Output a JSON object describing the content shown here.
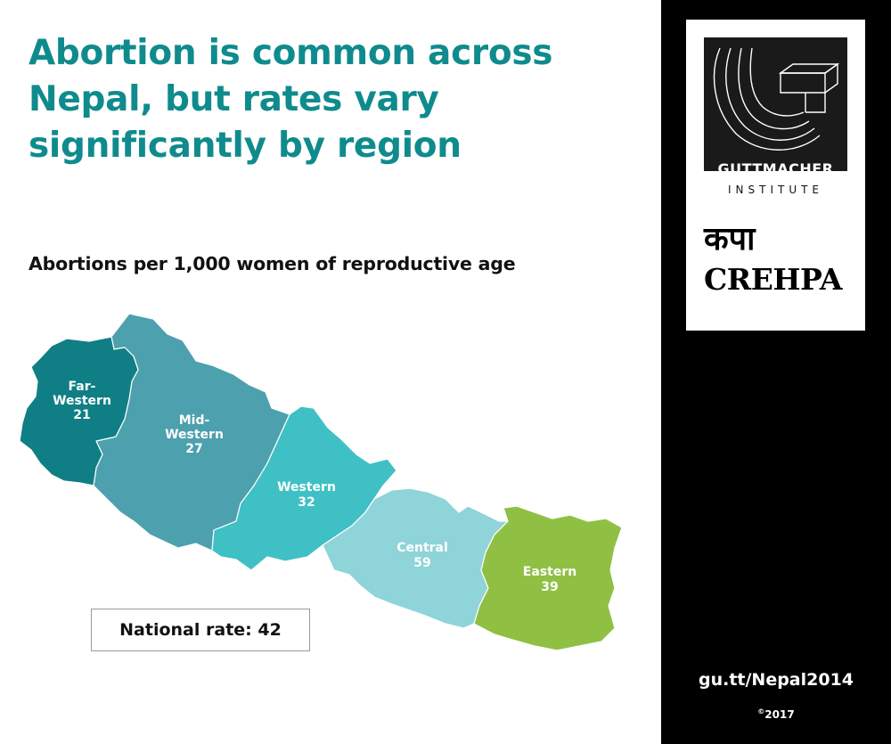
{
  "headline": "Abortion is common across Nepal, but rates vary significantly by region",
  "subtitle": "Abortions per 1,000 women of reproductive age",
  "map": {
    "regions": [
      {
        "id": "far-western",
        "label_lines": [
          "Far-",
          "Western"
        ],
        "value": "21",
        "color": "#0f7f85"
      },
      {
        "id": "mid-western",
        "label_lines": [
          "Mid-",
          "Western"
        ],
        "value": "27",
        "color": "#4da0ad"
      },
      {
        "id": "western",
        "label_lines": [
          "Western"
        ],
        "value": "32",
        "color": "#3fc0c4"
      },
      {
        "id": "central",
        "label_lines": [
          "Central"
        ],
        "value": "59",
        "color": "#8fd4d9"
      },
      {
        "id": "eastern",
        "label_lines": [
          "Eastern"
        ],
        "value": "39",
        "color": "#8fc043"
      }
    ]
  },
  "national_rate": "National rate: 42",
  "logos": {
    "guttmacher_name": "GUTTMACHER",
    "guttmacher_sub": "INSTITUTE",
    "crehpa_devanagari": "कपा",
    "crehpa_name": "CREHPA"
  },
  "link": "gu.tt/Nepal2014",
  "copyright_symbol": "©",
  "copyright_year": "2017",
  "colors": {
    "headline": "#0f8b8d",
    "sidebar": "#000000"
  }
}
